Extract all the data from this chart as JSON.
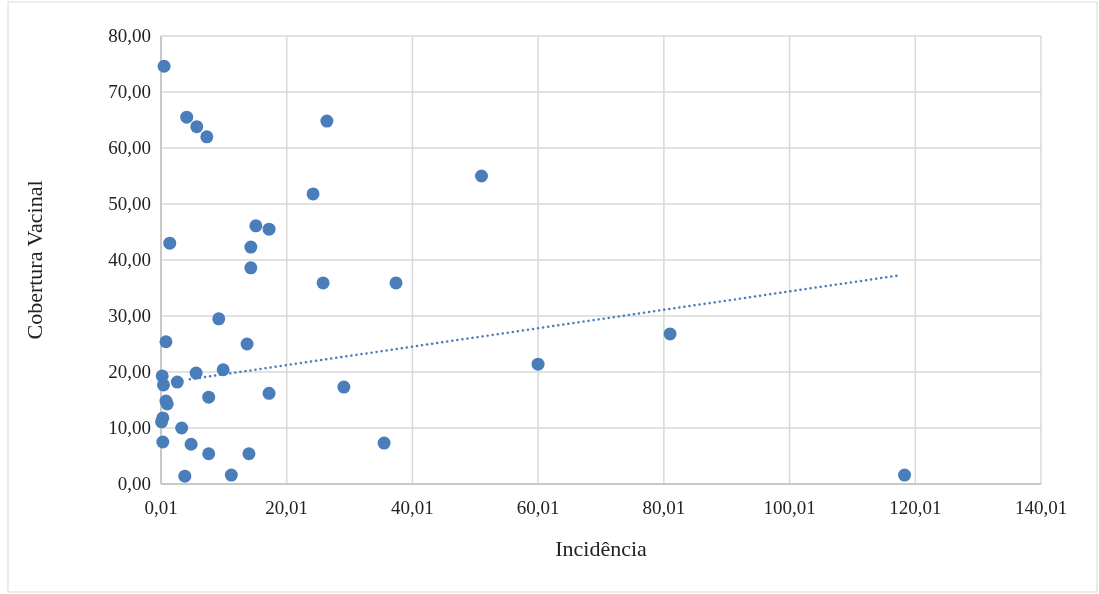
{
  "chart_data": {
    "type": "scatter",
    "xlabel": "Incidência",
    "ylabel": "Cobertura Vacinal",
    "xlim": [
      0.01,
      140.01
    ],
    "xticks": [
      {
        "value": 0.01,
        "label": "0,01"
      },
      {
        "value": 20.01,
        "label": "20,01"
      },
      {
        "value": 40.01,
        "label": "40,01"
      },
      {
        "value": 60.01,
        "label": "60,01"
      },
      {
        "value": 80.01,
        "label": "80,01"
      },
      {
        "value": 100.01,
        "label": "100,01"
      },
      {
        "value": 120.01,
        "label": "120,01"
      },
      {
        "value": 140.01,
        "label": "140,01"
      }
    ],
    "ylim": [
      0,
      80
    ],
    "yticks": [
      {
        "value": 0,
        "label": "0,00"
      },
      {
        "value": 10,
        "label": "10,00"
      },
      {
        "value": 20,
        "label": "20,00"
      },
      {
        "value": 30,
        "label": "30,00"
      },
      {
        "value": 40,
        "label": "40,00"
      },
      {
        "value": 50,
        "label": "50,00"
      },
      {
        "value": 60,
        "label": "60,00"
      },
      {
        "value": 70,
        "label": "70,00"
      },
      {
        "value": 80,
        "label": "80,00"
      }
    ],
    "grid": true,
    "marker": "circle",
    "series": [
      {
        "color": "#4a7ebb",
        "x": [
          0.5,
          4.1,
          5.7,
          7.3,
          26.4,
          24.2,
          51.0,
          1.4,
          15.1,
          17.2,
          14.3,
          14.3,
          25.8,
          37.4,
          9.2,
          0.8,
          13.7,
          60.0,
          81.0,
          0.2,
          0.4,
          2.6,
          5.6,
          9.9,
          7.6,
          17.2,
          29.1,
          0.8,
          1.0,
          0.3,
          0.1,
          3.3,
          0.3,
          4.8,
          7.6,
          14.0,
          35.5,
          3.8,
          11.2,
          118.3
        ],
        "values": [
          74.6,
          65.5,
          63.8,
          62.0,
          64.8,
          51.8,
          55.0,
          43.0,
          46.1,
          45.5,
          42.3,
          38.6,
          35.9,
          35.9,
          29.5,
          25.4,
          25.0,
          21.4,
          26.8,
          19.3,
          17.7,
          18.2,
          19.8,
          20.4,
          15.5,
          16.2,
          17.3,
          14.8,
          14.3,
          11.8,
          11.1,
          10.0,
          7.5,
          7.1,
          5.4,
          5.4,
          7.3,
          1.4,
          1.6,
          1.6
        ]
      },
      {
        "type": "line",
        "color": "#4a7ebb",
        "line_style": "dotted",
        "marker": "none",
        "x": [
          4.6,
          117.7
        ],
        "values": [
          18.7,
          37.3
        ]
      }
    ]
  }
}
